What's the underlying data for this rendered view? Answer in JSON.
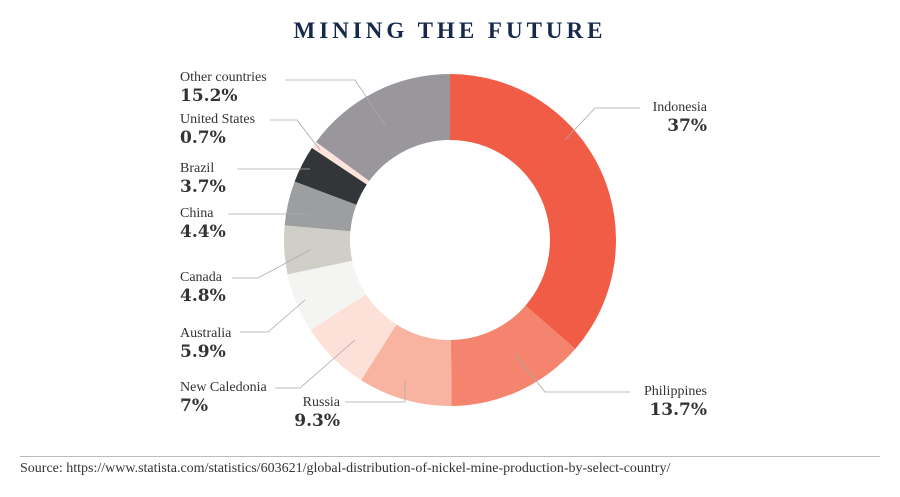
{
  "chart_data": {
    "type": "pie",
    "donut": true,
    "title": "MINING THE FUTURE",
    "start": "top, clockwise",
    "slices": [
      {
        "label": "Indonesia",
        "value": 37,
        "display": "37%",
        "color": "#f05c45"
      },
      {
        "label": "Philippines",
        "value": 13.7,
        "display": "13.7%",
        "color": "#f4846d"
      },
      {
        "label": "Russia",
        "value": 9.3,
        "display": "9.3%",
        "color": "#f8b4a0"
      },
      {
        "label": "New Caledonia",
        "value": 7,
        "display": "7%",
        "color": "#fde0d8"
      },
      {
        "label": "Australia",
        "value": 5.9,
        "display": "5.9%",
        "color": "#f4f4f2"
      },
      {
        "label": "Canada",
        "value": 4.8,
        "display": "4.8%",
        "color": "#cfcec7"
      },
      {
        "label": "China",
        "value": 4.4,
        "display": "4.4%",
        "color": "#9c9ea0"
      },
      {
        "label": "Brazil",
        "value": 3.7,
        "display": "3.7%",
        "color": "#333638"
      },
      {
        "label": "United States",
        "value": 0.7,
        "display": "0.7%",
        "color": "#fde3dc"
      },
      {
        "label": "Other countries",
        "value": 15.2,
        "display": "15.2%",
        "color": "#99979b"
      }
    ]
  },
  "source": "Source: https://www.statista.com/statistics/603621/global-distribution-of-nickel-mine-production-by-select-country/"
}
